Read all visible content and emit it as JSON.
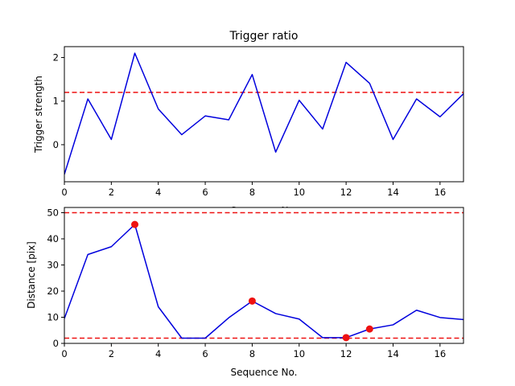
{
  "chart_data": [
    {
      "type": "line",
      "title": "Trigger ratio",
      "xlabel": "Sequence No.",
      "ylabel": "Trigger strength",
      "xlim": [
        0,
        17
      ],
      "ylim": [
        -0.85,
        2.25
      ],
      "xticks": [
        0,
        2,
        4,
        6,
        8,
        10,
        12,
        14,
        16
      ],
      "yticks": [
        0,
        1,
        2
      ],
      "grid": false,
      "series": [
        {
          "color": "#0000dd",
          "x": [
            0,
            1,
            2,
            3,
            4,
            5,
            6,
            7,
            8,
            9,
            10,
            11,
            12,
            13,
            14,
            15,
            16,
            17
          ],
          "y": [
            -0.68,
            1.05,
            0.12,
            2.1,
            0.82,
            0.23,
            0.66,
            0.57,
            1.61,
            -0.17,
            1.02,
            0.36,
            1.89,
            1.41,
            0.12,
            1.05,
            0.64,
            1.17
          ]
        }
      ],
      "hlines": [
        {
          "y": 1.2,
          "color": "#ee1111",
          "style": "dashed"
        }
      ]
    },
    {
      "type": "line",
      "title": "",
      "xlabel": "Sequence No.",
      "ylabel": "Distance [pix]",
      "xlim": [
        0,
        17
      ],
      "ylim": [
        0,
        52
      ],
      "xticks": [
        0,
        2,
        4,
        6,
        8,
        10,
        12,
        14,
        16
      ],
      "yticks": [
        0,
        10,
        20,
        30,
        40,
        50
      ],
      "grid": false,
      "series": [
        {
          "color": "#0000dd",
          "x": [
            0,
            1,
            2,
            3,
            4,
            5,
            6,
            7,
            8,
            9,
            10,
            11,
            12,
            13,
            14,
            15,
            16,
            17
          ],
          "y": [
            9.5,
            34,
            37,
            45.5,
            14,
            2,
            2,
            9.8,
            16.2,
            11.4,
            9.3,
            2.2,
            2.2,
            5.5,
            7.1,
            12.7,
            9.9,
            9.1
          ]
        }
      ],
      "markers": {
        "color": "#ee1111",
        "x": [
          3,
          8,
          12,
          13
        ],
        "y": [
          45.5,
          16.2,
          2.2,
          5.5
        ]
      },
      "hlines": [
        {
          "y": 50,
          "color": "#ee1111",
          "style": "dashed"
        },
        {
          "y": 2,
          "color": "#ee1111",
          "style": "dashed"
        }
      ]
    }
  ]
}
